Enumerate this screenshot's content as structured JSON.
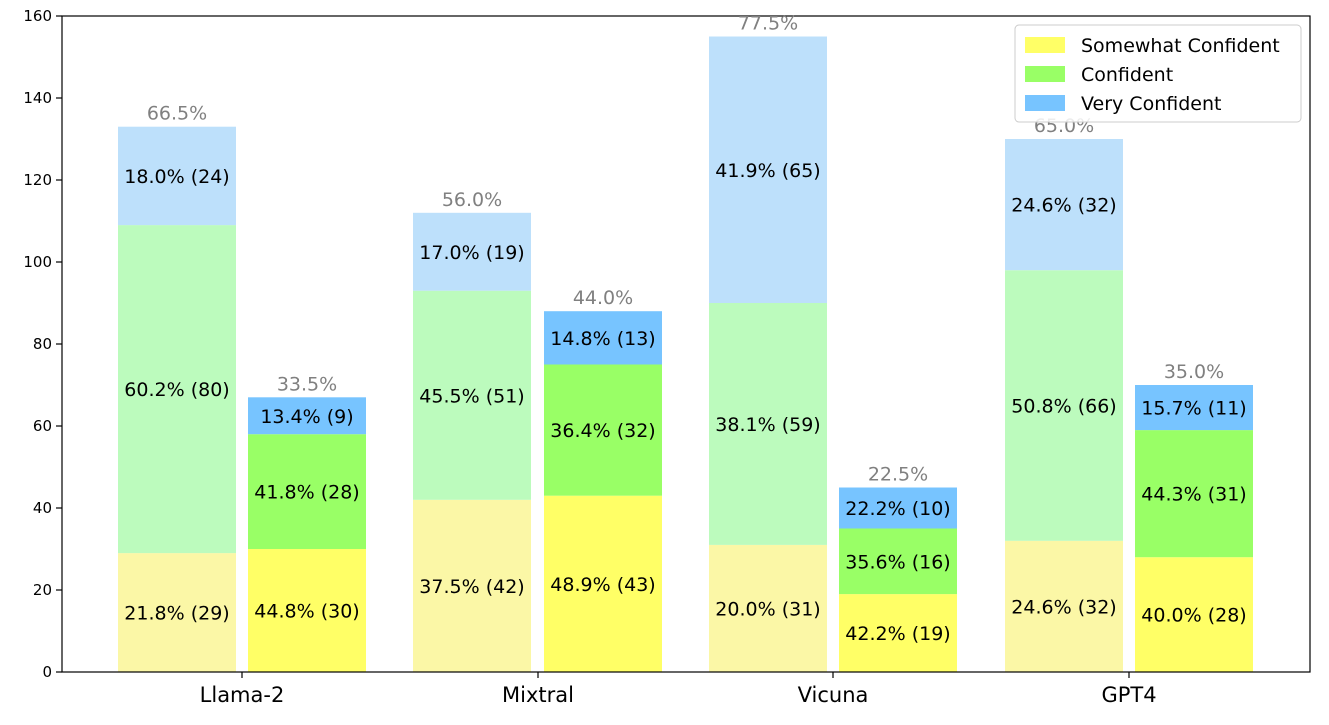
{
  "chart_data": {
    "type": "bar",
    "stacked": true,
    "categories": [
      "Llama-2",
      "Mixtral",
      "Vicuna",
      "GPT4"
    ],
    "ylim": [
      0,
      160
    ],
    "yticks": [
      0,
      20,
      40,
      60,
      80,
      100,
      120,
      140,
      160
    ],
    "legend_position": "top-right",
    "series": [
      {
        "name": "Somewhat Confident",
        "color": "#ffff66",
        "light_color": "#fbf7a6"
      },
      {
        "name": "Confident",
        "color": "#99ff66",
        "light_color": "#bcfbbd"
      },
      {
        "name": "Very Confident",
        "color": "#77c4ff",
        "light_color": "#bde0fb"
      }
    ],
    "bars": [
      {
        "category": "Llama-2",
        "shade": "light",
        "total_label": "66.5%",
        "values": [
          29,
          80,
          24
        ],
        "labels": [
          "21.8% (29)",
          "60.2% (80)",
          "18.0% (24)"
        ]
      },
      {
        "category": "Llama-2",
        "shade": "dark",
        "total_label": "33.5%",
        "values": [
          30,
          28,
          9
        ],
        "labels": [
          "44.8% (30)",
          "41.8% (28)",
          "13.4% (9)"
        ]
      },
      {
        "category": "Mixtral",
        "shade": "light",
        "total_label": "56.0%",
        "values": [
          42,
          51,
          19
        ],
        "labels": [
          "37.5% (42)",
          "45.5% (51)",
          "17.0% (19)"
        ]
      },
      {
        "category": "Mixtral",
        "shade": "dark",
        "total_label": "44.0%",
        "values": [
          43,
          32,
          13
        ],
        "labels": [
          "48.9% (43)",
          "36.4% (32)",
          "14.8% (13)"
        ]
      },
      {
        "category": "Vicuna",
        "shade": "light",
        "total_label": "77.5%",
        "values": [
          31,
          59,
          65
        ],
        "labels": [
          "20.0% (31)",
          "38.1% (59)",
          "41.9% (65)"
        ]
      },
      {
        "category": "Vicuna",
        "shade": "dark",
        "total_label": "22.5%",
        "values": [
          19,
          16,
          10
        ],
        "labels": [
          "42.2% (19)",
          "35.6% (16)",
          "22.2% (10)"
        ]
      },
      {
        "category": "GPT4",
        "shade": "light",
        "total_label": "65.0%",
        "values": [
          32,
          66,
          32
        ],
        "labels": [
          "24.6% (32)",
          "50.8% (66)",
          "24.6% (32)"
        ]
      },
      {
        "category": "GPT4",
        "shade": "dark",
        "total_label": "35.0%",
        "values": [
          28,
          31,
          11
        ],
        "labels": [
          "40.0% (28)",
          "44.3% (31)",
          "15.7% (11)"
        ]
      }
    ]
  }
}
